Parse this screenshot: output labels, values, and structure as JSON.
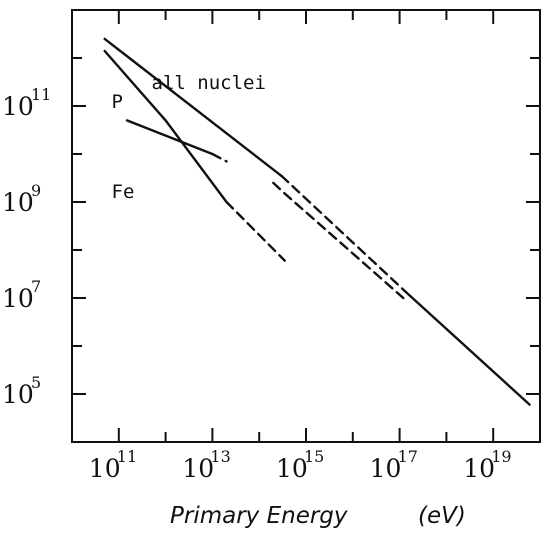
{
  "chart_data": {
    "type": "line",
    "xlabel": "Primary Energy",
    "xlabel_unit": "(eV)",
    "ylabel": "",
    "x_scale": "log",
    "y_scale": "log",
    "xlim": [
      10000000000.0,
      1e+20
    ],
    "ylim": [
      10000.0,
      10000000000000.0
    ],
    "x_ticks": [
      {
        "base": "10",
        "exp": "11",
        "value": 100000000000.0
      },
      {
        "base": "10",
        "exp": "13",
        "value": 10000000000000.0
      },
      {
        "base": "10",
        "exp": "15",
        "value": 1000000000000000.0
      },
      {
        "base": "10",
        "exp": "17",
        "value": 1e+17
      },
      {
        "base": "10",
        "exp": "19",
        "value": 1e+19
      }
    ],
    "y_ticks": [
      {
        "base": "10",
        "exp": "5",
        "value": 100000.0
      },
      {
        "base": "10",
        "exp": "7",
        "value": 10000000.0
      },
      {
        "base": "10",
        "exp": "9",
        "value": 1000000000.0
      },
      {
        "base": "10",
        "exp": "11",
        "value": 100000000000.0
      }
    ],
    "series": [
      {
        "name": "all nuclei",
        "stroke": "#111111",
        "segments": [
          {
            "style": "solid",
            "points": [
              [
                50000000000.0,
                2500000000000.0
              ],
              [
                300000000000000.0,
                3500000000.0
              ]
            ]
          },
          {
            "style": "dashed",
            "points": [
              [
                300000000000000.0,
                3500000000.0
              ],
              [
                1.4e+17,
                13000000.0
              ]
            ]
          },
          {
            "style": "solid",
            "points": [
              [
                1.4e+17,
                13000000.0
              ],
              [
                6e+19,
                60000.0
              ]
            ]
          }
        ]
      },
      {
        "name": "P",
        "stroke": "#111111",
        "segments": [
          {
            "style": "solid",
            "points": [
              [
                50000000000.0,
                1400000000000.0
              ],
              [
                1000000000000.0,
                50000000000.0
              ],
              [
                20000000000000.0,
                1000000000.0
              ]
            ]
          },
          {
            "style": "dashed",
            "points": [
              [
                20000000000000.0,
                1000000000.0
              ],
              [
                350000000000000.0,
                60000000.0
              ]
            ]
          }
        ]
      },
      {
        "name": "Fe",
        "stroke": "#111111",
        "segments": [
          {
            "style": "solid",
            "points": [
              [
                150000000000.0,
                50000000000.0
              ],
              [
                10000000000000.0,
                10000000000.0
              ]
            ]
          },
          {
            "style": "dashed",
            "points": [
              [
                10000000000000.0,
                10000000000.0
              ],
              [
                20000000000000.0,
                7000000000.0
              ]
            ]
          },
          {
            "style": "dashed",
            "points": [
              [
                200000000000000.0,
                2500000000.0
              ],
              [
                350000000000000.0,
                1500000000.0
              ],
              [
                1.2e+17,
                10000000.0
              ]
            ]
          }
        ]
      }
    ],
    "annotations": [
      {
        "text": "all nuclei",
        "x": 500000000000.0,
        "y": 300000000000.0
      },
      {
        "text": "P",
        "x": 70000000000.0,
        "y": 120000000000.0
      },
      {
        "text": "Fe",
        "x": 70000000000.0,
        "y": 1600000000.0
      }
    ],
    "grid": false,
    "legend": "none"
  }
}
